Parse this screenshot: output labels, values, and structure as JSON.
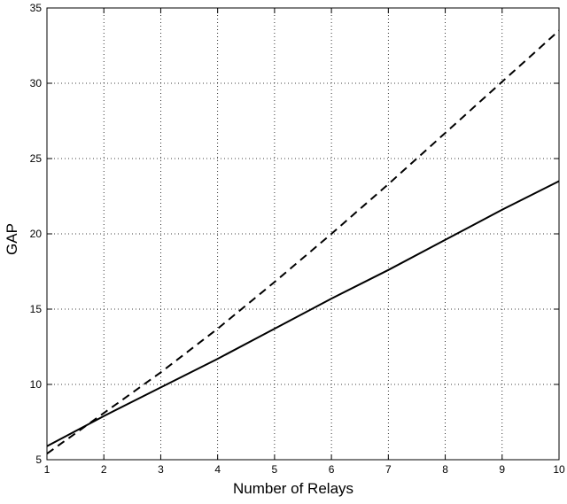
{
  "chart_data": {
    "type": "line",
    "title": "",
    "xlabel": "Number of Relays",
    "ylabel": "GAP",
    "xlim": [
      1,
      10
    ],
    "ylim": [
      5,
      35
    ],
    "xticks": [
      1,
      2,
      3,
      4,
      5,
      6,
      7,
      8,
      9,
      10
    ],
    "yticks": [
      5,
      10,
      15,
      20,
      25,
      30,
      35
    ],
    "grid": true,
    "legend": "none",
    "series": [
      {
        "style": "solid",
        "color": "#000000",
        "x": [
          1,
          2,
          3,
          4,
          5,
          6,
          7,
          8,
          9,
          10
        ],
        "y": [
          5.9,
          7.9,
          9.8,
          11.7,
          13.7,
          15.7,
          17.6,
          19.6,
          21.6,
          23.5
        ]
      },
      {
        "style": "dashed",
        "color": "#000000",
        "x": [
          1,
          2,
          3,
          4,
          5,
          6,
          7,
          8,
          9,
          10
        ],
        "y": [
          5.4,
          8.1,
          10.8,
          13.7,
          16.8,
          20.0,
          23.3,
          26.7,
          30.1,
          33.5
        ]
      }
    ]
  }
}
